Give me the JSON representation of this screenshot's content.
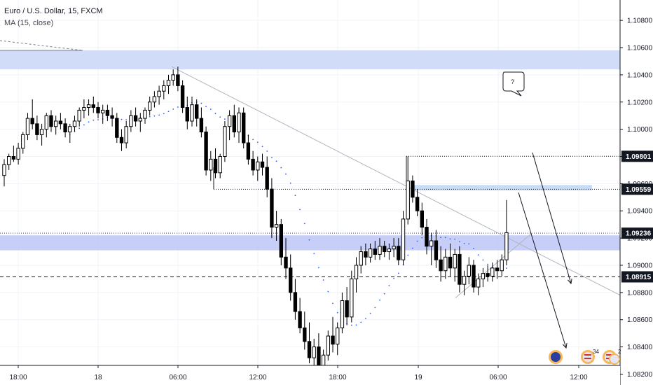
{
  "header": {
    "symbol_line": "Euro / U.S. Dollar, 15, FXCM",
    "indicator_line": "MA (15, close)"
  },
  "annotations": {
    "callout_text": "?"
  },
  "colors": {
    "candle": "#000000",
    "ma": "#2962ff",
    "zone_top": "#c9d7f7",
    "zone_mid": "#b9c2f5",
    "zone_small": "#c3d8f5",
    "trendline": "#b2b5be",
    "grid": "#f0f3fa",
    "tag_bg": "#131722"
  },
  "chart_data": {
    "type": "candlestick",
    "symbol": "Euro / U.S. Dollar, 15, FXCM",
    "ylim": [
      1.0812,
      1.1095
    ],
    "y_ticks": [
      "1.10800",
      "1.10600",
      "1.10400",
      "1.10200",
      "1.10000",
      "1.09800",
      "1.09600",
      "1.09400",
      "1.09200",
      "1.09000",
      "1.08800",
      "1.08600",
      "1.08400",
      "1.08200"
    ],
    "x_ticks": [
      "18:00",
      "18",
      "06:00",
      "12:00",
      "18:00",
      "19",
      "06:00",
      "12:00"
    ],
    "price_tags": [
      "1.09801",
      "1.09559",
      "1.09236",
      "1.08915"
    ],
    "horizontal_levels": [
      1.09801,
      1.09559,
      1.09236,
      1.08915
    ],
    "zones": [
      {
        "from": 1.1044,
        "to": 1.1058
      },
      {
        "from": 1.0911,
        "to": 1.0922
      },
      {
        "from": 1.0955,
        "to": 1.0959
      }
    ],
    "candles": [
      [
        1.0966,
        1.0978,
        1.0958,
        1.0974
      ],
      [
        1.0974,
        1.0982,
        1.097,
        1.098
      ],
      [
        1.098,
        1.0988,
        1.0976,
        1.0978
      ],
      [
        1.0978,
        1.099,
        1.0974,
        1.0986
      ],
      [
        1.0986,
        1.0998,
        1.0982,
        1.0996
      ],
      [
        1.0996,
        1.1012,
        1.0992,
        1.1008
      ],
      [
        1.1008,
        1.1022,
        1.1,
        1.1004
      ],
      [
        1.1004,
        1.101,
        1.0992,
        1.0996
      ],
      [
        1.0996,
        1.1004,
        1.0988,
        1.1
      ],
      [
        1.1,
        1.1012,
        1.0994,
        1.101
      ],
      [
        1.101,
        1.1014,
        1.0998,
        1.1002
      ],
      [
        1.1002,
        1.101,
        1.0996,
        1.1006
      ],
      [
        1.1006,
        1.1012,
        1.1,
        1.1004
      ],
      [
        1.1004,
        1.1008,
        1.0994,
        1.0998
      ],
      [
        1.0998,
        1.1004,
        1.099,
        1.1002
      ],
      [
        1.1002,
        1.101,
        1.0998,
        1.1006
      ],
      [
        1.1006,
        1.1016,
        1.1002,
        1.1014
      ],
      [
        1.1014,
        1.1022,
        1.1008,
        1.1016
      ],
      [
        1.1016,
        1.1022,
        1.101,
        1.1018
      ],
      [
        1.1018,
        1.1024,
        1.1012,
        1.1016
      ],
      [
        1.1016,
        1.102,
        1.1008,
        1.1012
      ],
      [
        1.1012,
        1.1018,
        1.1004,
        1.1014
      ],
      [
        1.1014,
        1.1018,
        1.1006,
        1.101
      ],
      [
        1.101,
        1.1016,
        1.1002,
        1.1008
      ],
      [
        1.1008,
        1.1012,
        1.099,
        1.0994
      ],
      [
        1.0994,
        1.1,
        1.0984,
        1.099
      ],
      [
        1.099,
        1.1006,
        1.0986,
        1.1002
      ],
      [
        1.1002,
        1.1014,
        1.0998,
        1.101
      ],
      [
        1.101,
        1.1016,
        1.1002,
        1.1006
      ],
      [
        1.1006,
        1.1012,
        1.0998,
        1.1008
      ],
      [
        1.1008,
        1.1016,
        1.1004,
        1.1014
      ],
      [
        1.1014,
        1.1024,
        1.101,
        1.102
      ],
      [
        1.102,
        1.1028,
        1.1016,
        1.1024
      ],
      [
        1.1024,
        1.1032,
        1.1018,
        1.1028
      ],
      [
        1.1028,
        1.1036,
        1.1022,
        1.1032
      ],
      [
        1.1032,
        1.104,
        1.1026,
        1.1036
      ],
      [
        1.1036,
        1.1044,
        1.1032,
        1.104
      ],
      [
        1.104,
        1.1046,
        1.1028,
        1.1032
      ],
      [
        1.1032,
        1.1036,
        1.1012,
        1.1016
      ],
      [
        1.1016,
        1.1024,
        1.1,
        1.1006
      ],
      [
        1.1006,
        1.1024,
        1.1002,
        1.1018
      ],
      [
        1.1018,
        1.1022,
        1.1002,
        1.1008
      ],
      [
        1.1008,
        1.1016,
        1.0994,
        1.0998
      ],
      [
        1.0998,
        1.1002,
        1.0966,
        1.097
      ],
      [
        1.097,
        1.0984,
        1.0962,
        1.0978
      ],
      [
        1.0978,
        1.0986,
        1.0964,
        1.0968
      ],
      [
        1.0968,
        1.0982,
        1.0964,
        1.098
      ],
      [
        1.098,
        1.1006,
        1.0976,
        1.1002
      ],
      [
        1.1002,
        1.1014,
        1.0992,
        1.101
      ],
      [
        1.101,
        1.1018,
        1.0994,
        1.0998
      ],
      [
        1.0998,
        1.1016,
        1.099,
        1.1012
      ],
      [
        1.1012,
        1.1016,
        1.0986,
        1.099
      ],
      [
        1.099,
        1.0996,
        1.0974,
        1.0978
      ],
      [
        1.0978,
        1.0984,
        1.0966,
        1.097
      ],
      [
        1.097,
        1.098,
        1.0962,
        1.0976
      ],
      [
        1.0976,
        1.0982,
        1.0966,
        1.0972
      ],
      [
        1.0972,
        1.098,
        1.095,
        1.0956
      ],
      [
        1.0956,
        1.0964,
        1.092,
        1.0928
      ],
      [
        1.0928,
        1.094,
        1.0918,
        1.093
      ],
      [
        1.093,
        1.0934,
        1.09,
        1.0906
      ],
      [
        1.0906,
        1.092,
        1.089,
        1.0898
      ],
      [
        1.0898,
        1.0908,
        1.0874,
        1.088
      ],
      [
        1.088,
        1.089,
        1.086,
        1.0866
      ],
      [
        1.0866,
        1.0876,
        1.085,
        1.0854
      ],
      [
        1.0854,
        1.0866,
        1.0838,
        1.0844
      ],
      [
        1.0844,
        1.0858,
        1.0828,
        1.0832
      ],
      [
        1.0832,
        1.0846,
        1.082,
        1.084
      ],
      [
        1.084,
        1.085,
        1.0816,
        1.0822
      ],
      [
        1.0822,
        1.0838,
        1.0812,
        1.0834
      ],
      [
        1.0834,
        1.0852,
        1.083,
        1.0848
      ],
      [
        1.0848,
        1.0862,
        1.0836,
        1.0842
      ],
      [
        1.0842,
        1.0858,
        1.0834,
        1.0854
      ],
      [
        1.0854,
        1.088,
        1.085,
        1.0874
      ],
      [
        1.0874,
        1.0884,
        1.0856,
        1.0862
      ],
      [
        1.0862,
        1.0896,
        1.0858,
        1.089
      ],
      [
        1.089,
        1.0906,
        1.088,
        1.09
      ],
      [
        1.09,
        1.0914,
        1.0894,
        1.091
      ],
      [
        1.091,
        1.0916,
        1.09,
        1.0906
      ],
      [
        1.0906,
        1.0916,
        1.0902,
        1.0912
      ],
      [
        1.0912,
        1.0918,
        1.0904,
        1.0908
      ],
      [
        1.0908,
        1.092,
        1.0904,
        1.0914
      ],
      [
        1.0914,
        1.0918,
        1.0906,
        1.091
      ],
      [
        1.091,
        1.0916,
        1.0904,
        1.0912
      ],
      [
        1.0912,
        1.092,
        1.0906,
        1.0914
      ],
      [
        1.0914,
        1.092,
        1.09,
        1.0904
      ],
      [
        1.0904,
        1.094,
        1.09,
        1.0934
      ],
      [
        1.0934,
        1.098,
        1.093,
        1.0962
      ],
      [
        1.0962,
        1.0966,
        1.0946,
        1.095
      ],
      [
        1.095,
        1.0956,
        1.0936,
        1.094
      ],
      [
        1.094,
        1.0946,
        1.0922,
        1.0928
      ],
      [
        1.0928,
        1.0934,
        1.0908,
        1.0914
      ],
      [
        1.0914,
        1.0924,
        1.09,
        1.0918
      ],
      [
        1.0918,
        1.0926,
        1.0898,
        1.0904
      ],
      [
        1.0904,
        1.0914,
        1.0888,
        1.0896
      ],
      [
        1.0896,
        1.0912,
        1.089,
        1.0906
      ],
      [
        1.0906,
        1.0916,
        1.0892,
        1.0898
      ],
      [
        1.0898,
        1.0912,
        1.0888,
        1.0908
      ],
      [
        1.0908,
        1.0914,
        1.088,
        1.0886
      ],
      [
        1.0886,
        1.0896,
        1.0878,
        1.0892
      ],
      [
        1.0892,
        1.0906,
        1.0886,
        1.09
      ],
      [
        1.09,
        1.0904,
        1.088,
        1.0884
      ],
      [
        1.0884,
        1.0894,
        1.0878,
        1.089
      ],
      [
        1.089,
        1.0898,
        1.0884,
        1.0894
      ],
      [
        1.0894,
        1.09,
        1.0888,
        1.0892
      ],
      [
        1.0892,
        1.0902,
        1.0888,
        1.0898
      ],
      [
        1.0898,
        1.0904,
        1.089,
        1.0896
      ],
      [
        1.0896,
        1.0908,
        1.0892,
        1.0904
      ],
      [
        1.0904,
        1.0948,
        1.09,
        1.0924
      ]
    ]
  }
}
